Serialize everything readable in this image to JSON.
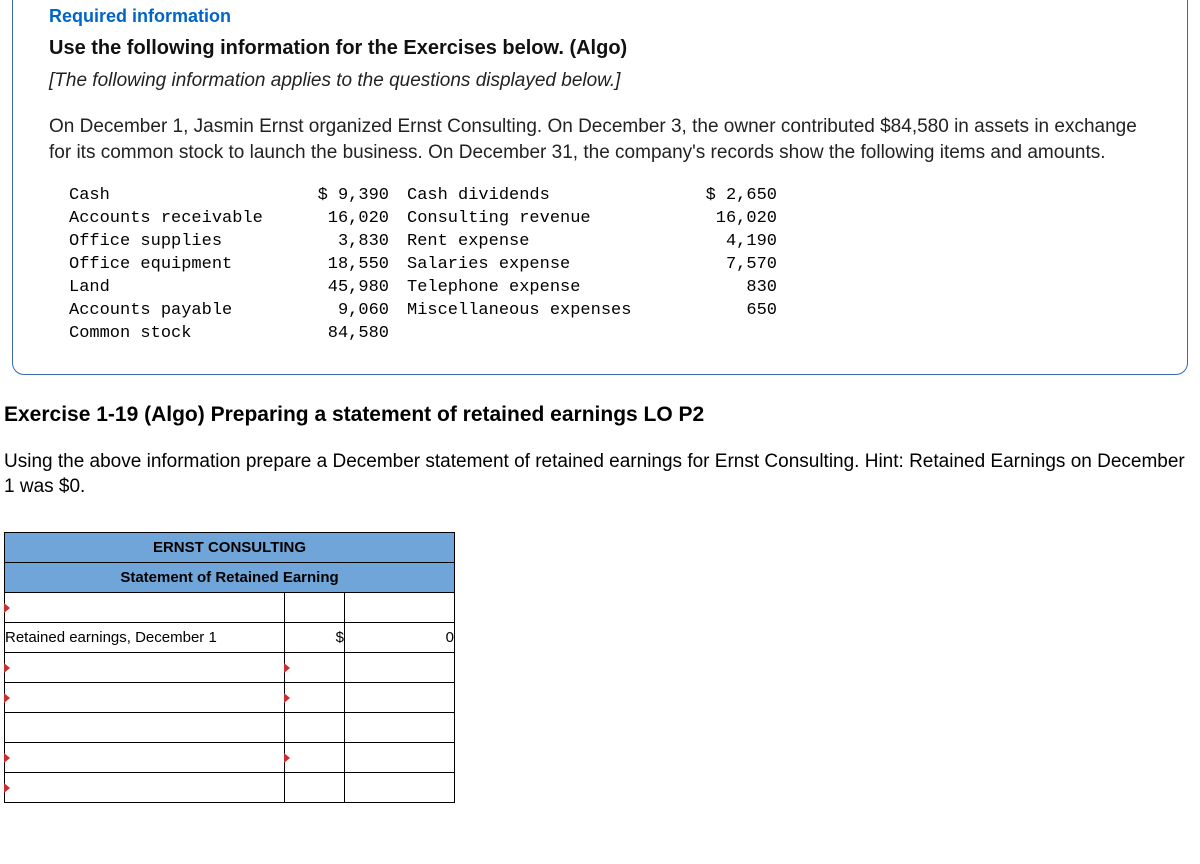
{
  "info": {
    "required_label": "Required information",
    "instruction": "Use the following information for the Exercises below. (Algo)",
    "note": "[The following information applies to the questions displayed below.]",
    "narrative": "On December 1, Jasmin Ernst organized Ernst Consulting. On December 3, the owner contributed $84,580 in assets in exchange for its common stock to launch the business. On December 31, the company's records show the following items and amounts."
  },
  "accounts_table": {
    "font": "Courier New",
    "left": {
      "labels": [
        "Cash",
        "Accounts receivable",
        "Office supplies",
        "Office equipment",
        "Land",
        "Accounts payable",
        "Common stock"
      ],
      "values": [
        "$ 9,390",
        "16,020",
        "3,830",
        "18,550",
        "45,980",
        "9,060",
        "84,580"
      ]
    },
    "right": {
      "labels": [
        "Cash dividends",
        "Consulting revenue",
        "Rent expense",
        "Salaries expense",
        "Telephone expense",
        "Miscellaneous expenses"
      ],
      "values": [
        "$ 2,650",
        "16,020",
        "4,190",
        "7,570",
        "830",
        "650"
      ]
    }
  },
  "exercise": {
    "heading": "Exercise 1-19 (Algo) Preparing a statement of retained earnings LO P2",
    "text": "Using the above information prepare a December statement of retained earnings for Ernst Consulting. Hint: Retained Earnings on December 1 was $0."
  },
  "worksheet": {
    "header_colors": {
      "bg": "#6fa5d9",
      "border": "#000000"
    },
    "title1": "ERNST CONSULTING",
    "title2": "Statement of Retained Earning",
    "rows": [
      {
        "label": "",
        "sym": "",
        "val": "",
        "marker_left": true,
        "marker_mid": false
      },
      {
        "label": "Retained earnings, December 1",
        "sym": "$",
        "val": "0",
        "marker_left": false,
        "marker_mid": false
      },
      {
        "label": "",
        "sym": "",
        "val": "",
        "marker_left": true,
        "marker_mid": true
      },
      {
        "label": "",
        "sym": "",
        "val": "",
        "marker_left": true,
        "marker_mid": true
      },
      {
        "label": "",
        "sym": "",
        "val": "",
        "marker_left": false,
        "marker_mid": false
      },
      {
        "label": "",
        "sym": "",
        "val": "",
        "marker_left": true,
        "marker_mid": true
      },
      {
        "label": "",
        "sym": "",
        "val": "",
        "marker_left": true,
        "marker_mid": false
      }
    ]
  }
}
